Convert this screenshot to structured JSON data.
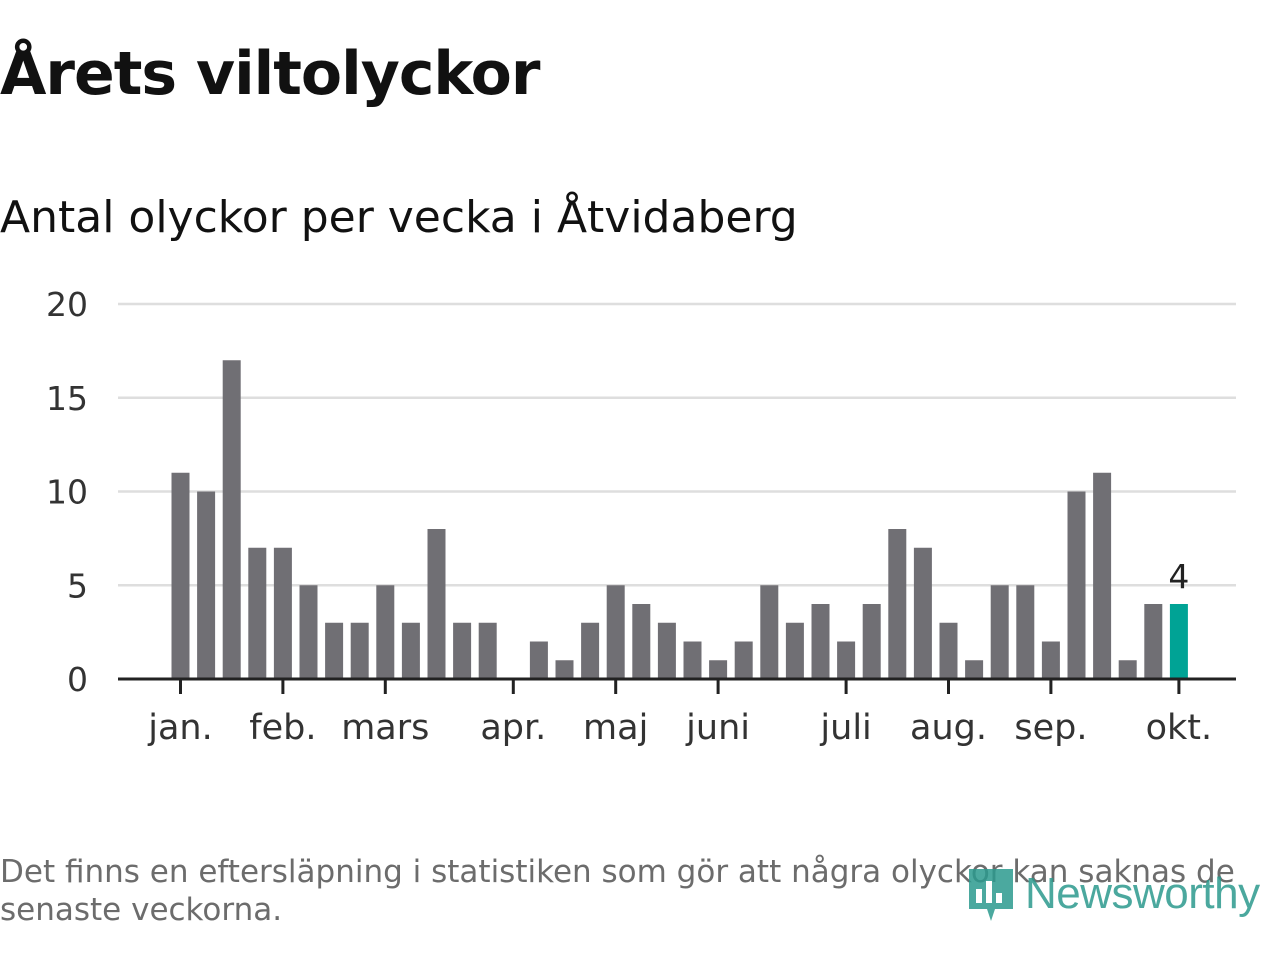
{
  "title": "Årets viltolyckor",
  "subtitle": "Antal olyckor per vecka i Åtvidaberg",
  "note": "Det finns en eftersläpning i statistiken som gör att några olyckor kan saknas de senaste veckorna.",
  "logo": {
    "text": "Newsworthy",
    "icon": "newsworthy-chart-icon"
  },
  "colors": {
    "bar": "#706f74",
    "highlight": "#00a395",
    "grid": "#dedede",
    "axis": "#222222"
  },
  "chart_data": {
    "type": "bar",
    "title": "Antal olyckor per vecka i Åtvidaberg",
    "xlabel": "",
    "ylabel": "",
    "ylim": [
      0,
      20
    ],
    "yticks": [
      0,
      5,
      10,
      15,
      20
    ],
    "grid": true,
    "values": [
      11,
      10,
      17,
      7,
      7,
      5,
      3,
      3,
      5,
      3,
      8,
      3,
      3,
      0,
      2,
      1,
      3,
      5,
      4,
      3,
      2,
      1,
      2,
      5,
      3,
      4,
      2,
      4,
      8,
      7,
      3,
      1,
      5,
      5,
      2,
      10,
      11,
      1,
      4,
      4
    ],
    "highlight_index": 39,
    "highlight_label": "4",
    "month_labels": [
      {
        "label": "jan.",
        "week": 0
      },
      {
        "label": "feb.",
        "week": 4
      },
      {
        "label": "mars",
        "week": 8
      },
      {
        "label": "apr.",
        "week": 13
      },
      {
        "label": "maj",
        "week": 17
      },
      {
        "label": "juni",
        "week": 21
      },
      {
        "label": "juli",
        "week": 26
      },
      {
        "label": "aug.",
        "week": 30
      },
      {
        "label": "sep.",
        "week": 34
      },
      {
        "label": "okt.",
        "week": 39
      }
    ]
  }
}
